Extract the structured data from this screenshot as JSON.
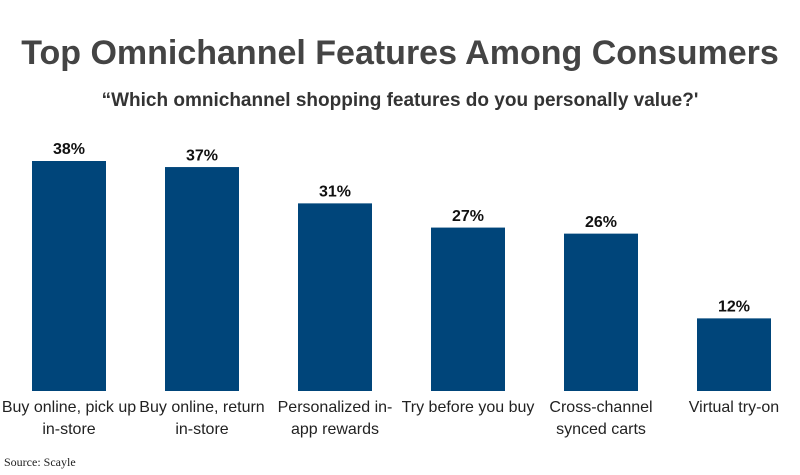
{
  "chart_data": {
    "type": "bar",
    "title": "Top Omnichannel Features Among Consumers",
    "subtitle": "“Which omnichannel shopping features do you personally value?'",
    "categories": [
      "Buy online, pick up in-store",
      "Buy online, return in-store",
      "Personalized in-app rewards",
      "Try before you buy",
      "Cross-channel synced carts",
      "Virtual try-on"
    ],
    "values": [
      38,
      37,
      31,
      27,
      26,
      12
    ],
    "value_labels": [
      "38%",
      "37%",
      "31%",
      "27%",
      "26%",
      "12%"
    ],
    "color": "#00457a",
    "source": "Source: Scayle"
  }
}
